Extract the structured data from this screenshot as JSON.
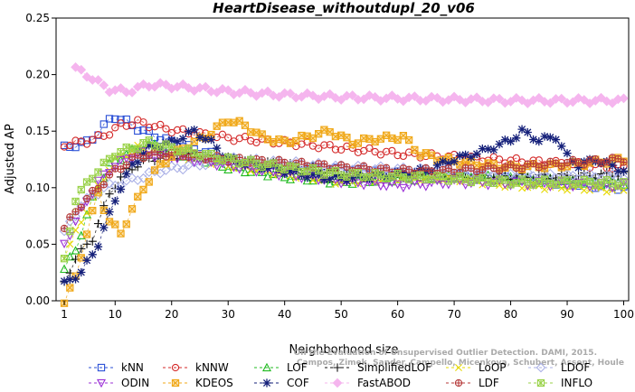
{
  "chart_data": {
    "type": "line",
    "title": "HeartDisease_withoutdupl_20_v06",
    "xlabel": "Neighborhood size",
    "ylabel": "Adjusted AP",
    "xlim": [
      0,
      100
    ],
    "ylim": [
      0,
      0.25
    ],
    "xticks": [
      "1",
      "10",
      "20",
      "30",
      "40",
      "50",
      "60",
      "70",
      "80",
      "90",
      "100"
    ],
    "yticks": [
      "0.00",
      "0.05",
      "0.10",
      "0.15",
      "0.20",
      "0.25"
    ],
    "legend_position": "bottom",
    "watermark": [
      "On the Evaluation of Unsupervised Outlier Detection. DAMI, 2015.",
      "Campos, Zimek, Sander, Campello, Micenkova, Schubert, Assent, Houle"
    ],
    "series": [
      {
        "name": "kNN",
        "color": "#2a4fd6",
        "marker": "square",
        "anchors": [
          [
            1,
            0.135
          ],
          [
            3,
            0.138
          ],
          [
            5,
            0.14
          ],
          [
            7,
            0.148
          ],
          [
            9,
            0.16
          ],
          [
            10,
            0.163
          ],
          [
            12,
            0.158
          ],
          [
            15,
            0.15
          ],
          [
            20,
            0.14
          ],
          [
            30,
            0.125
          ],
          [
            40,
            0.118
          ],
          [
            50,
            0.115
          ],
          [
            60,
            0.112
          ],
          [
            70,
            0.11
          ],
          [
            80,
            0.108
          ],
          [
            90,
            0.104
          ],
          [
            100,
            0.1
          ]
        ]
      },
      {
        "name": "kNNW",
        "color": "#d42a2a",
        "marker": "circle",
        "anchors": [
          [
            1,
            0.138
          ],
          [
            5,
            0.141
          ],
          [
            8,
            0.146
          ],
          [
            11,
            0.155
          ],
          [
            14,
            0.158
          ],
          [
            20,
            0.151
          ],
          [
            30,
            0.144
          ],
          [
            40,
            0.14
          ],
          [
            50,
            0.135
          ],
          [
            60,
            0.13
          ],
          [
            70,
            0.127
          ],
          [
            80,
            0.124
          ],
          [
            90,
            0.121
          ],
          [
            100,
            0.118
          ]
        ]
      },
      {
        "name": "LOF",
        "color": "#22bb22",
        "marker": "triangle",
        "anchors": [
          [
            1,
            0.028
          ],
          [
            3,
            0.045
          ],
          [
            6,
            0.09
          ],
          [
            9,
            0.12
          ],
          [
            12,
            0.13
          ],
          [
            16,
            0.138
          ],
          [
            20,
            0.132
          ],
          [
            25,
            0.126
          ],
          [
            30,
            0.118
          ],
          [
            40,
            0.11
          ],
          [
            50,
            0.105
          ],
          [
            60,
            0.108
          ],
          [
            70,
            0.11
          ],
          [
            80,
            0.108
          ],
          [
            90,
            0.105
          ],
          [
            100,
            0.105
          ]
        ]
      },
      {
        "name": "SimplifiedLOF",
        "color": "#111111",
        "marker": "plus",
        "anchors": [
          [
            1,
            0.015
          ],
          [
            3,
            0.038
          ],
          [
            6,
            0.055
          ],
          [
            9,
            0.095
          ],
          [
            12,
            0.115
          ],
          [
            16,
            0.125
          ],
          [
            20,
            0.128
          ],
          [
            25,
            0.128
          ],
          [
            30,
            0.125
          ],
          [
            40,
            0.12
          ],
          [
            50,
            0.113
          ],
          [
            60,
            0.11
          ],
          [
            70,
            0.11
          ],
          [
            80,
            0.11
          ],
          [
            90,
            0.11
          ],
          [
            100,
            0.112
          ]
        ]
      },
      {
        "name": "LoOP",
        "color": "#e6d800",
        "marker": "cross",
        "anchors": [
          [
            1,
            0.04
          ],
          [
            4,
            0.07
          ],
          [
            7,
            0.1
          ],
          [
            10,
            0.125
          ],
          [
            14,
            0.135
          ],
          [
            20,
            0.13
          ],
          [
            30,
            0.12
          ],
          [
            40,
            0.112
          ],
          [
            50,
            0.105
          ],
          [
            60,
            0.108
          ],
          [
            70,
            0.108
          ],
          [
            80,
            0.102
          ],
          [
            90,
            0.1
          ],
          [
            100,
            0.098
          ]
        ]
      },
      {
        "name": "LDOF",
        "color": "#aab0e6",
        "marker": "diamond",
        "anchors": [
          [
            1,
            0.06
          ],
          [
            4,
            0.085
          ],
          [
            8,
            0.1
          ],
          [
            12,
            0.105
          ],
          [
            18,
            0.115
          ],
          [
            24,
            0.12
          ],
          [
            30,
            0.125
          ],
          [
            40,
            0.122
          ],
          [
            50,
            0.118
          ],
          [
            60,
            0.116
          ],
          [
            70,
            0.115
          ],
          [
            80,
            0.112
          ],
          [
            90,
            0.11
          ],
          [
            100,
            0.11
          ]
        ]
      },
      {
        "name": "ODIN",
        "color": "#9b30d6",
        "marker": "triangle-down",
        "anchors": [
          [
            1,
            0.05
          ],
          [
            4,
            0.08
          ],
          [
            7,
            0.105
          ],
          [
            10,
            0.12
          ],
          [
            14,
            0.13
          ],
          [
            20,
            0.128
          ],
          [
            30,
            0.12
          ],
          [
            40,
            0.112
          ],
          [
            50,
            0.106
          ],
          [
            60,
            0.102
          ],
          [
            70,
            0.105
          ],
          [
            80,
            0.104
          ],
          [
            90,
            0.103
          ],
          [
            100,
            0.102
          ]
        ]
      },
      {
        "name": "KDEOS",
        "color": "#f0a818",
        "marker": "square-cross",
        "anchors": [
          [
            1,
            0.0
          ],
          [
            3,
            0.02
          ],
          [
            5,
            0.06
          ],
          [
            7,
            0.095
          ],
          [
            9,
            0.07
          ],
          [
            11,
            0.06
          ],
          [
            13,
            0.08
          ],
          [
            15,
            0.1
          ],
          [
            18,
            0.12
          ],
          [
            22,
            0.135
          ],
          [
            26,
            0.145
          ],
          [
            30,
            0.16
          ],
          [
            33,
            0.155
          ],
          [
            36,
            0.145
          ],
          [
            40,
            0.14
          ],
          [
            44,
            0.145
          ],
          [
            48,
            0.15
          ],
          [
            52,
            0.14
          ],
          [
            56,
            0.143
          ],
          [
            61,
            0.145
          ],
          [
            64,
            0.13
          ],
          [
            68,
            0.125
          ],
          [
            72,
            0.122
          ],
          [
            80,
            0.118
          ],
          [
            90,
            0.12
          ],
          [
            100,
            0.125
          ]
        ]
      },
      {
        "name": "COF",
        "color": "#15207a",
        "marker": "asterisk",
        "anchors": [
          [
            1,
            0.015
          ],
          [
            4,
            0.025
          ],
          [
            7,
            0.05
          ],
          [
            10,
            0.09
          ],
          [
            13,
            0.12
          ],
          [
            16,
            0.135
          ],
          [
            20,
            0.14
          ],
          [
            24,
            0.15
          ],
          [
            27,
            0.14
          ],
          [
            30,
            0.125
          ],
          [
            35,
            0.12
          ],
          [
            40,
            0.115
          ],
          [
            45,
            0.11
          ],
          [
            50,
            0.108
          ],
          [
            55,
            0.11
          ],
          [
            60,
            0.112
          ],
          [
            65,
            0.115
          ],
          [
            70,
            0.125
          ],
          [
            75,
            0.132
          ],
          [
            80,
            0.142
          ],
          [
            82,
            0.15
          ],
          [
            85,
            0.142
          ],
          [
            88,
            0.145
          ],
          [
            90,
            0.128
          ],
          [
            92,
            0.12
          ],
          [
            95,
            0.125
          ],
          [
            100,
            0.115
          ]
        ]
      },
      {
        "name": "FastABOD",
        "color": "#f5b5ee",
        "marker": "diamond-filled",
        "anchors": [
          [
            3,
            0.205
          ],
          [
            5,
            0.2
          ],
          [
            7,
            0.193
          ],
          [
            9,
            0.187
          ],
          [
            12,
            0.185
          ],
          [
            16,
            0.191
          ],
          [
            20,
            0.19
          ],
          [
            30,
            0.185
          ],
          [
            40,
            0.182
          ],
          [
            50,
            0.18
          ],
          [
            60,
            0.179
          ],
          [
            70,
            0.178
          ],
          [
            80,
            0.177
          ],
          [
            90,
            0.177
          ],
          [
            100,
            0.177
          ]
        ]
      },
      {
        "name": "LDF",
        "color": "#b53a3a",
        "marker": "circle-plus",
        "anchors": [
          [
            1,
            0.065
          ],
          [
            4,
            0.085
          ],
          [
            7,
            0.1
          ],
          [
            10,
            0.115
          ],
          [
            14,
            0.128
          ],
          [
            20,
            0.13
          ],
          [
            30,
            0.125
          ],
          [
            40,
            0.122
          ],
          [
            50,
            0.118
          ],
          [
            60,
            0.115
          ],
          [
            70,
            0.115
          ],
          [
            80,
            0.118
          ],
          [
            90,
            0.122
          ],
          [
            100,
            0.125
          ]
        ]
      },
      {
        "name": "INFLO",
        "color": "#9ad24a",
        "marker": "star-box",
        "anchors": [
          [
            1,
            0.035
          ],
          [
            3,
            0.09
          ],
          [
            6,
            0.11
          ],
          [
            10,
            0.13
          ],
          [
            13,
            0.135
          ],
          [
            16,
            0.14
          ],
          [
            20,
            0.135
          ],
          [
            30,
            0.125
          ],
          [
            40,
            0.118
          ],
          [
            50,
            0.112
          ],
          [
            60,
            0.11
          ],
          [
            70,
            0.108
          ],
          [
            80,
            0.105
          ],
          [
            90,
            0.105
          ],
          [
            100,
            0.104
          ]
        ]
      }
    ]
  }
}
